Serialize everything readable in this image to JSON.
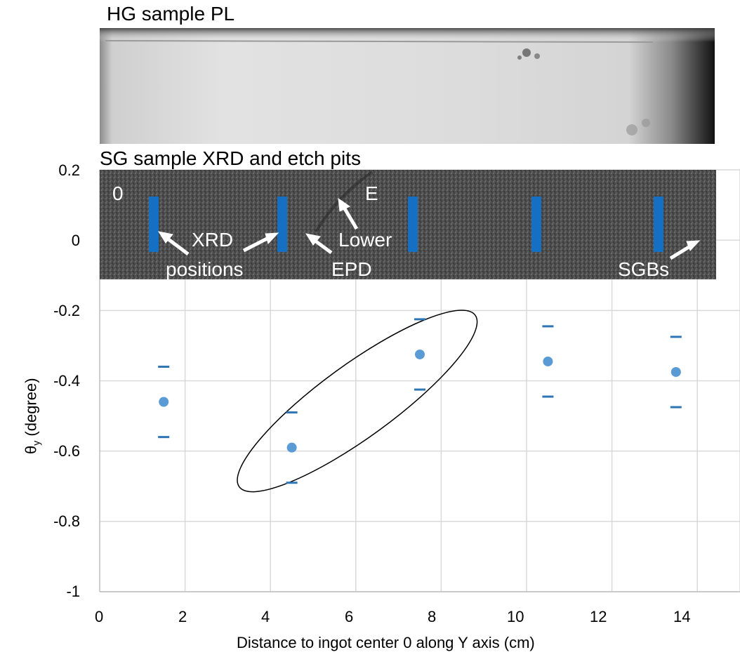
{
  "hg_panel": {
    "label": "HG sample PL"
  },
  "sg_panel": {
    "label": "SG sample XRD and etch pits",
    "marker_0": "0",
    "marker_e": "E",
    "annotations": {
      "xrd_line1": "XRD",
      "xrd_line2": "positions",
      "lower_line1": "Lower",
      "lower_line2": "EPD",
      "sgbs": "SGBs"
    },
    "xrd_bar_color": "#1570c4"
  },
  "colors": {
    "point": "#5b9bd5",
    "error_tick": "#2e75b6",
    "grid": "#d9d9d9",
    "ellipse": "#000000"
  },
  "chart_data": {
    "type": "scatter",
    "xlabel": "Distance to ingot center 0 along Y axis (cm)",
    "ylabel_main": "θ",
    "ylabel_sub": "y",
    "ylabel_rest": " (degree)",
    "xlim": [
      0,
      15
    ],
    "ylim": [
      -1,
      0.2
    ],
    "xticks": [
      0,
      2,
      4,
      6,
      8,
      10,
      12,
      14
    ],
    "yticks": [
      0.2,
      0,
      -0.2,
      -0.4,
      -0.6,
      -0.8,
      -1
    ],
    "ytick_labels": [
      "0.2",
      "0",
      "-0.2",
      "-0.4",
      "-0.6",
      "-0.8",
      "-1"
    ],
    "grid": true,
    "points": [
      {
        "x": 1.5,
        "y": -0.46,
        "upper": -0.36,
        "lower": -0.56
      },
      {
        "x": 4.5,
        "y": -0.59,
        "upper": -0.49,
        "lower": -0.69
      },
      {
        "x": 7.5,
        "y": -0.325,
        "upper": -0.225,
        "lower": -0.425
      },
      {
        "x": 10.5,
        "y": -0.345,
        "upper": -0.245,
        "lower": -0.445
      },
      {
        "x": 13.5,
        "y": -0.375,
        "upper": -0.275,
        "lower": -0.475
      }
    ],
    "highlight": {
      "shape": "ellipse",
      "around_points": [
        1,
        2
      ]
    }
  }
}
